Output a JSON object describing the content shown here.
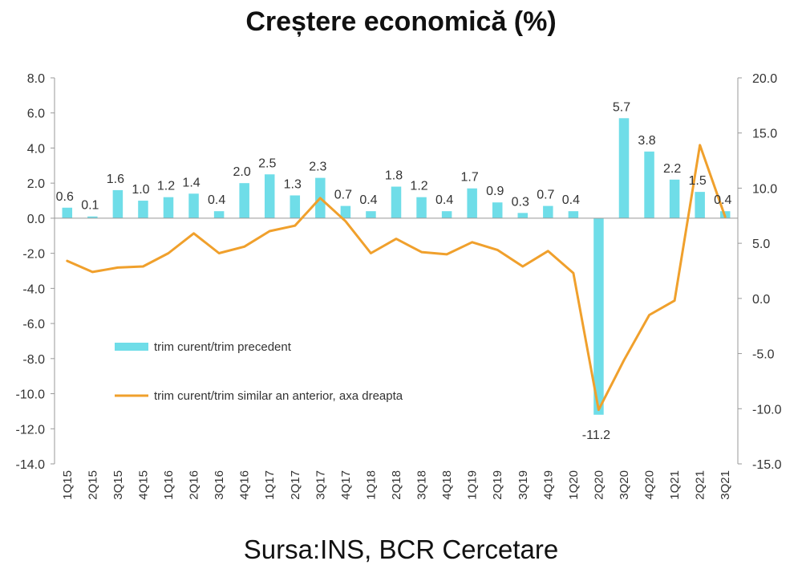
{
  "chart_data": {
    "type": "bar",
    "title": "Creștere economică (%)",
    "categories": [
      "1Q15",
      "2Q15",
      "3Q15",
      "4Q15",
      "1Q16",
      "2Q16",
      "3Q16",
      "4Q16",
      "1Q17",
      "2Q17",
      "3Q17",
      "4Q17",
      "1Q18",
      "2Q18",
      "3Q18",
      "4Q18",
      "1Q19",
      "2Q19",
      "3Q19",
      "4Q19",
      "1Q20",
      "2Q20",
      "3Q20",
      "4Q20",
      "1Q21",
      "2Q21",
      "3Q21"
    ],
    "series": [
      {
        "name": "trim curent/trim precedent",
        "type": "bar",
        "axis": "left",
        "color": "#6fdde8",
        "values": [
          0.6,
          0.1,
          1.6,
          1.0,
          1.2,
          1.4,
          0.4,
          2.0,
          2.5,
          1.3,
          2.3,
          0.7,
          0.4,
          1.8,
          1.2,
          0.4,
          1.7,
          0.9,
          0.3,
          0.7,
          0.4,
          -11.2,
          5.7,
          3.8,
          2.2,
          1.5,
          0.4
        ],
        "labels": [
          "0.6",
          "0.1",
          "1.6",
          "1.0",
          "1.2",
          "1.4",
          "0.4",
          "2.0",
          "2.5",
          "1.3",
          "2.3",
          "0.7",
          "0.4",
          "1.8",
          "1.2",
          "0.4",
          "1.7",
          "0.9",
          "0.3",
          "0.7",
          "0.4",
          "-11.2",
          "5.7",
          "3.8",
          "2.2",
          "1.5",
          "0.4"
        ]
      },
      {
        "name": "trim curent/trim similar an anterior, axa dreapta",
        "type": "line",
        "axis": "right",
        "color": "#f0a02c",
        "values": [
          3.4,
          2.4,
          2.8,
          2.9,
          4.1,
          5.9,
          4.1,
          4.7,
          6.1,
          6.6,
          9.1,
          7.0,
          4.1,
          5.4,
          4.2,
          4.0,
          5.1,
          4.4,
          2.9,
          4.3,
          2.3,
          -10.1,
          -5.6,
          -1.5,
          -0.2,
          13.9,
          7.4
        ]
      }
    ],
    "ylim_left": [
      -14,
      8
    ],
    "yticks_left": [
      "8.0",
      "6.0",
      "4.0",
      "2.0",
      "0.0",
      "-2.0",
      "-4.0",
      "-6.0",
      "-8.0",
      "-10.0",
      "-12.0",
      "-14.0"
    ],
    "ylim_right": [
      -15,
      20
    ],
    "yticks_right": [
      "20.0",
      "15.0",
      "10.0",
      "5.0",
      "0.0",
      "-5.0",
      "-10.0",
      "-15.0"
    ],
    "grid": false,
    "legend_position": "left-inside"
  },
  "source": "Sursa:INS, BCR Cercetare"
}
